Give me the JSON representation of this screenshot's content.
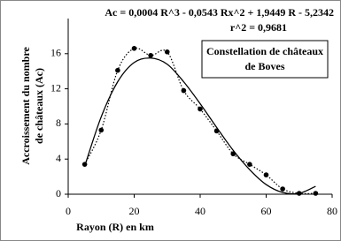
{
  "chart_data": {
    "type": "scatter",
    "equation": "Ac = 0,0004 R^3 - 0,0543 Rx^2 + 1,9449 R - 5,2342",
    "r_squared": "r^2 = 0,9681",
    "legend_text": [
      "Constellation de châteaux",
      "de Boves"
    ],
    "x_label": "Rayon (R) en km",
    "y_label": [
      "Accroissement du nombre",
      "de châteaux (Ac)"
    ],
    "x": [
      5,
      10,
      15,
      20,
      25,
      30,
      35,
      40,
      45,
      50,
      55,
      60,
      65,
      70,
      75
    ],
    "series": [
      {
        "color": "#000000",
        "style": "dotted-markers",
        "values": [
          3.4,
          7.3,
          14.1,
          16.6,
          15.8,
          16.2,
          11.8,
          9.7,
          7.2,
          4.6,
          3.4,
          2.2,
          0.6,
          0.1,
          0.1
        ]
      },
      {
        "color": "#000000",
        "style": "solid",
        "values": [
          3.2,
          8.8,
          12.8,
          15.0,
          15.5,
          14.8,
          12.8,
          10.3,
          7.6,
          5.0,
          2.8,
          1.1,
          0.2,
          0.1,
          0.9
        ]
      }
    ],
    "xlim": [
      0,
      80
    ],
    "xticks": [
      0,
      20,
      40,
      60,
      80
    ],
    "ylim": [
      0,
      20
    ],
    "yticks": [
      0,
      4,
      8,
      12,
      16
    ]
  }
}
